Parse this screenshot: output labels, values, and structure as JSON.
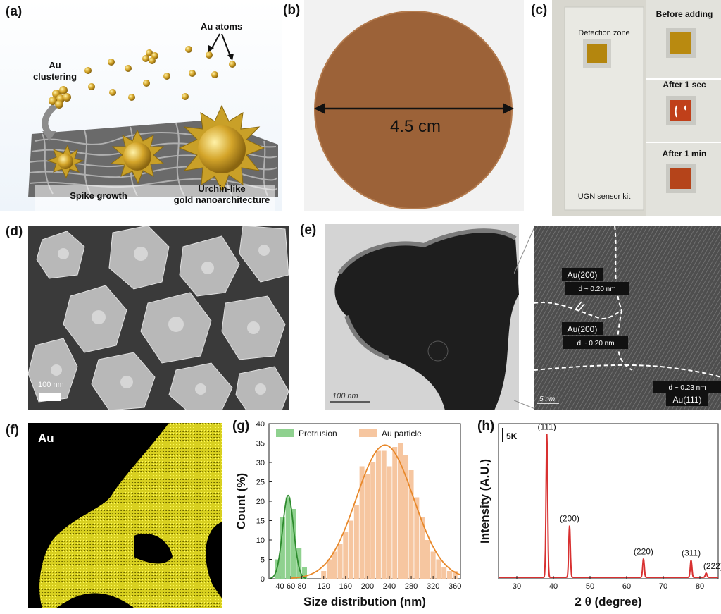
{
  "panels": {
    "a": {
      "label": "(a)",
      "au_atoms": "Au atoms",
      "au_clustering": "Au\nclustering",
      "au_line1": "Au",
      "au_line2": "clustering",
      "spike_growth": "Spike growth",
      "urchin_line1": "Urchin-like",
      "urchin_line2": "gold nanoarchitecture"
    },
    "b": {
      "label": "(b)",
      "diameter": "4.5 cm"
    },
    "c": {
      "label": "(c)",
      "detection_zone": "Detection zone",
      "kit_label": "UGN sensor kit",
      "before": "Before adding",
      "after_sec": "After 1 sec",
      "after_min": "After 1 min"
    },
    "d": {
      "label": "(d)",
      "scale": "100 nm"
    },
    "e": {
      "label": "(e)",
      "scale_left": "100 nm",
      "scale_right": "5 nm",
      "au200_a": "Au(200)",
      "d_a": "d ~ 0.20 nm",
      "au200_b": "Au(200)",
      "d_b": "d ~ 0.20 nm",
      "d_c": "d ~ 0.23 nm",
      "au111": "Au(111)"
    },
    "f": {
      "label": "(f)",
      "element": "Au"
    },
    "g": {
      "label": "(g)"
    },
    "h": {
      "label": "(h)"
    }
  },
  "chart_data": [
    {
      "type": "bar",
      "panel": "g",
      "xlabel": "Size distribution (nm)",
      "ylabel": "Count (%)",
      "xlim": [
        20,
        370
      ],
      "ylim": [
        0,
        40
      ],
      "xticks": [
        40,
        60,
        80,
        120,
        160,
        200,
        240,
        280,
        320,
        360
      ],
      "yticks": [
        0,
        5,
        10,
        15,
        20,
        25,
        30,
        35,
        40
      ],
      "legend_position": "top",
      "series": [
        {
          "name": "Protrusion",
          "color": "#8fd18f",
          "x": [
            35,
            45,
            55,
            65,
            75,
            85
          ],
          "values": [
            5,
            16,
            21,
            18,
            8,
            3
          ]
        },
        {
          "name": "Au particle",
          "color": "#f6c6a0",
          "x": [
            120,
            130,
            140,
            150,
            160,
            170,
            180,
            190,
            200,
            210,
            220,
            230,
            240,
            250,
            260,
            270,
            280,
            290,
            300,
            310,
            320,
            330,
            340,
            350,
            360
          ],
          "values": [
            2,
            5,
            7,
            9,
            12,
            15,
            19,
            29,
            27,
            30,
            33,
            33,
            29,
            34,
            35,
            32,
            28,
            21,
            16,
            10,
            7,
            5,
            3,
            2,
            2
          ]
        }
      ],
      "fits": [
        {
          "series": "Protrusion",
          "color": "#2e8b2e",
          "mean": 55,
          "sd": 10,
          "peak": 21.5
        },
        {
          "series": "Au particle",
          "color": "#e8882a",
          "mean": 232,
          "sd": 52,
          "peak": 34.5
        }
      ]
    },
    {
      "type": "line",
      "panel": "h",
      "xlabel": "2 θ (degree)",
      "ylabel": "Intensity (A.U.)",
      "xlim": [
        25,
        85
      ],
      "xticks": [
        30,
        40,
        50,
        60,
        70,
        80
      ],
      "scale_bar": "5K",
      "color": "#d83030",
      "baseline": 1,
      "peaks": [
        {
          "label": "(111)",
          "x": 38.2,
          "height": 100
        },
        {
          "label": "(200)",
          "x": 44.4,
          "height": 36
        },
        {
          "label": "(220)",
          "x": 64.6,
          "height": 13
        },
        {
          "label": "(311)",
          "x": 77.6,
          "height": 12
        },
        {
          "label": "(222)",
          "x": 81.7,
          "height": 3
        }
      ]
    }
  ]
}
